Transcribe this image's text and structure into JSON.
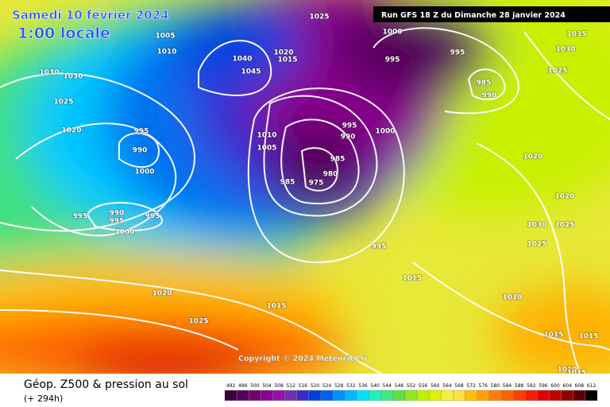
{
  "header": {
    "date": "Samedi 10 février 2024",
    "time": "1:00 locale",
    "run": "Run GFS 18 Z du Dimanche 28 janvier 2024"
  },
  "copyright": "Copyright © 2024 Meteociel.fr",
  "footer": {
    "title": "Géop. Z500 & pression au sol",
    "lead": "(+ 294h)"
  },
  "scale": {
    "values": [
      492,
      496,
      500,
      504,
      508,
      512,
      516,
      520,
      524,
      528,
      532,
      536,
      540,
      544,
      548,
      552,
      556,
      560,
      564,
      568,
      572,
      576,
      580,
      584,
      588,
      592,
      596,
      600,
      604,
      608,
      612
    ],
    "colors": [
      "#3a0040",
      "#55005a",
      "#700070",
      "#8a0090",
      "#9a10a8",
      "#7030b0",
      "#3a2ad0",
      "#0040e0",
      "#0060f0",
      "#0090ff",
      "#00b8ff",
      "#00e0ff",
      "#20f0c0",
      "#40e880",
      "#60e040",
      "#90e820",
      "#c0f000",
      "#e0f000",
      "#f8f040",
      "#ffe040",
      "#ffc000",
      "#ffa000",
      "#ff8000",
      "#ff6000",
      "#ff4000",
      "#f02000",
      "#e00000",
      "#c00000",
      "#900000",
      "#600000",
      "#000000"
    ]
  },
  "isobar_labels": [
    1005,
    1010,
    1030,
    1030,
    1025,
    1020,
    995,
    990,
    1000,
    995,
    990,
    995,
    995,
    1000,
    1020,
    1025,
    1015,
    1010,
    1005,
    1020,
    1015,
    1040,
    1045,
    1025,
    1000,
    995,
    995,
    985,
    990,
    995,
    990,
    1000,
    985,
    980,
    975,
    985,
    995,
    1015,
    1020,
    1020,
    1030,
    1025,
    1025,
    1020,
    1015,
    1015,
    1010,
    1015,
    1035,
    1030,
    1025
  ]
}
